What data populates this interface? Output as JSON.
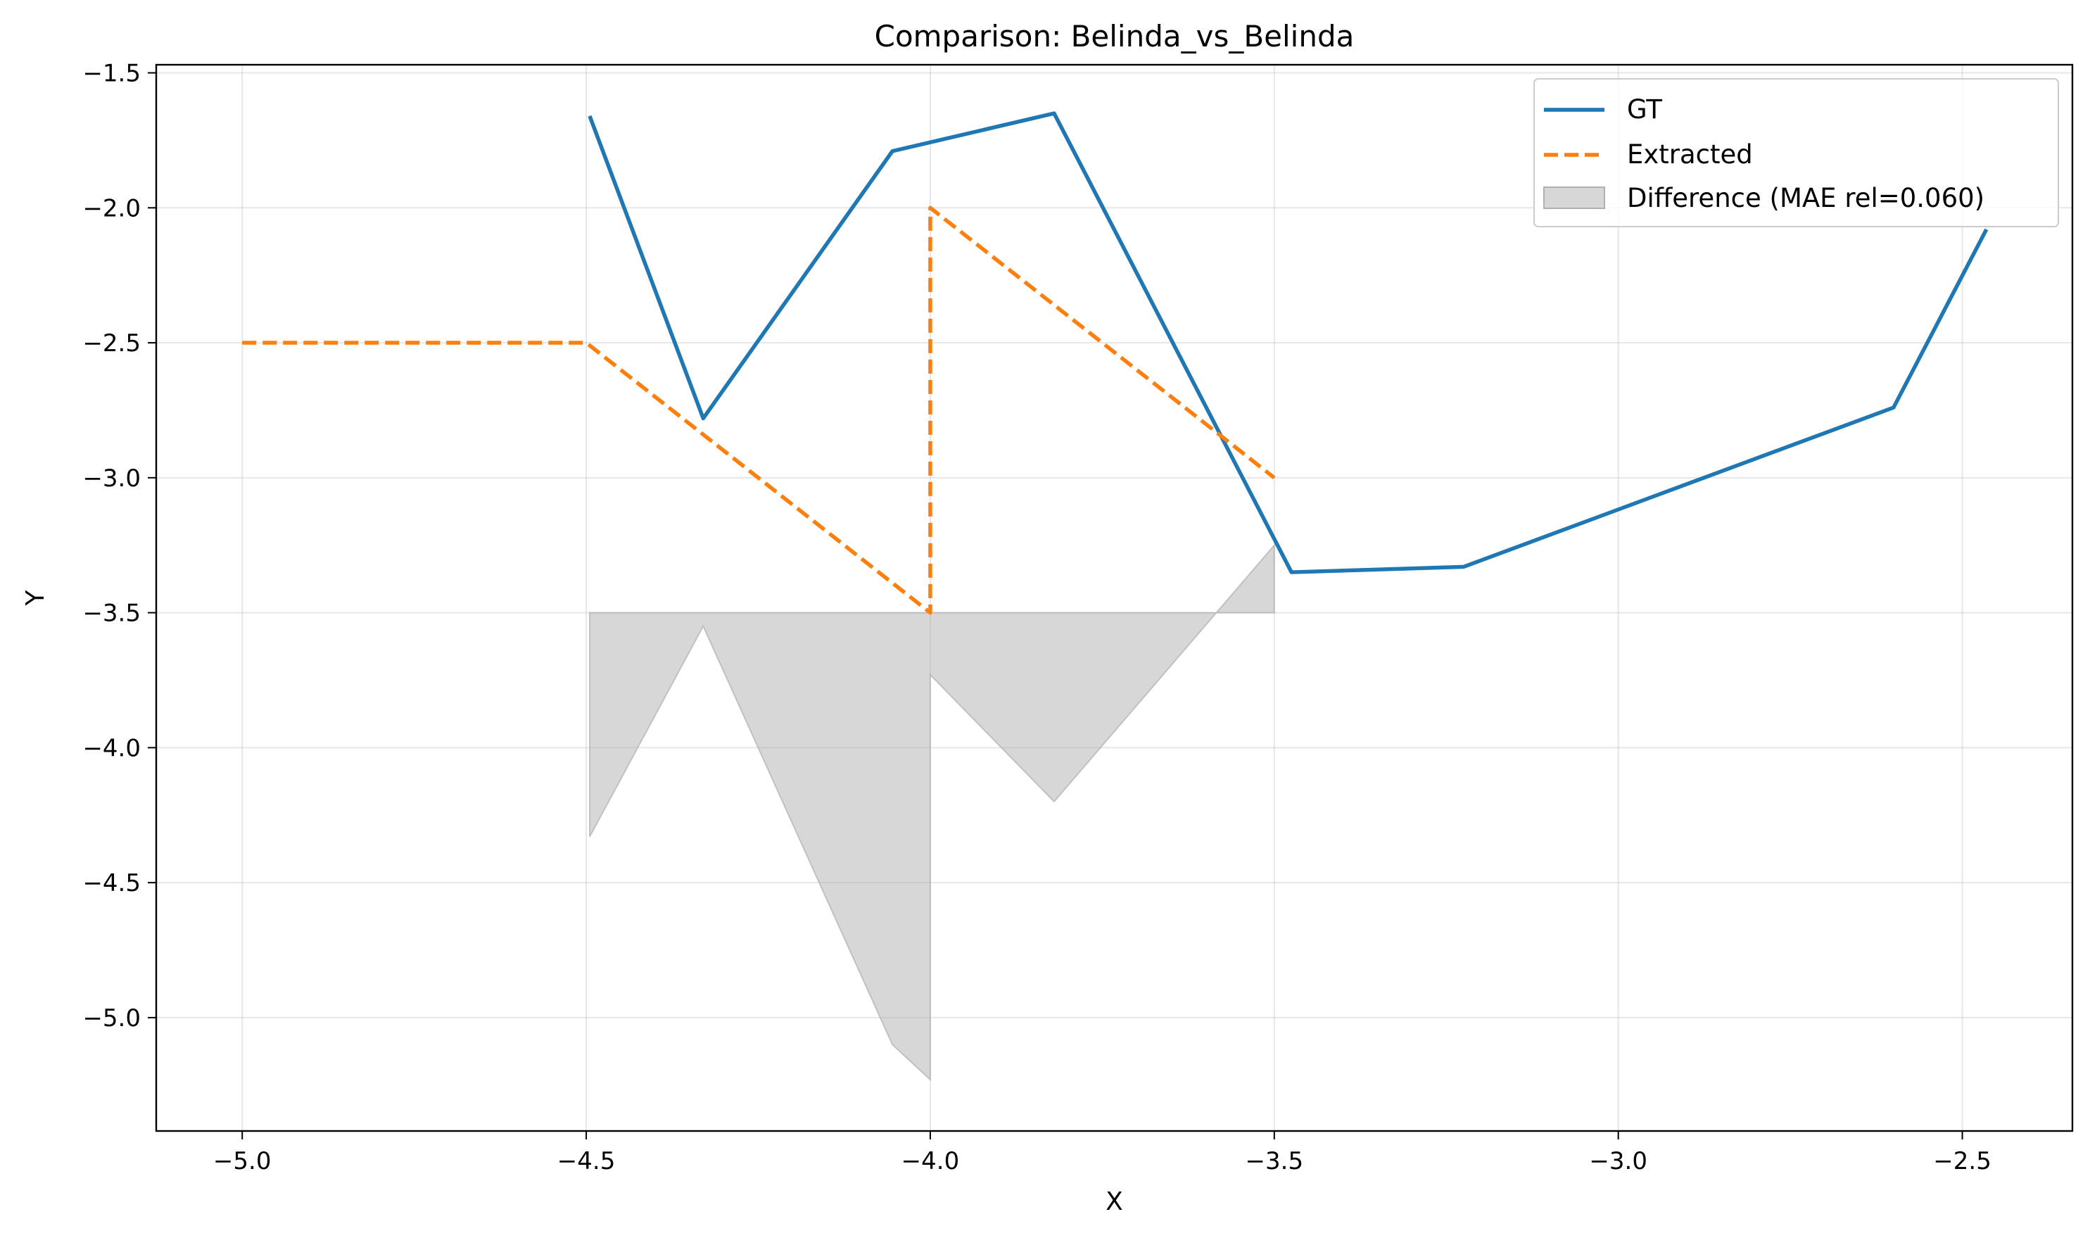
{
  "chart_data": {
    "type": "line",
    "title": "Comparison: Belinda_vs_Belinda",
    "xlabel": "X",
    "ylabel": "Y",
    "xlim": [
      -5.125,
      -2.34
    ],
    "ylim": [
      -5.42,
      -1.47
    ],
    "x_ticks": [
      -5.0,
      -4.5,
      -4.0,
      -3.5,
      -3.0,
      -2.5
    ],
    "x_tick_labels": [
      "−5.0",
      "−4.5",
      "−4.0",
      "−3.5",
      "−3.0",
      "−2.5"
    ],
    "y_ticks": [
      -1.5,
      -2.0,
      -2.5,
      -3.0,
      -3.5,
      -4.0,
      -4.5,
      -5.0
    ],
    "y_tick_labels": [
      "−1.5",
      "−2.0",
      "−2.5",
      "−3.0",
      "−3.5",
      "−4.0",
      "−4.5",
      "−5.0"
    ],
    "grid": true,
    "legend_position": "top-right",
    "series": [
      {
        "name": "GT",
        "color": "#1f77b4",
        "style": "solid",
        "points": [
          [
            -4.495,
            -1.66
          ],
          [
            -4.33,
            -2.78
          ],
          [
            -4.055,
            -1.79
          ],
          [
            -3.82,
            -1.65
          ],
          [
            -3.475,
            -3.35
          ],
          [
            -3.225,
            -3.33
          ],
          [
            -2.6,
            -2.74
          ],
          [
            -2.465,
            -2.08
          ]
        ]
      },
      {
        "name": "Extracted",
        "color": "#ff7f0e",
        "style": "dashed",
        "points": [
          [
            -5.0,
            -2.5
          ],
          [
            -4.5,
            -2.5
          ],
          [
            -4.0,
            -3.5
          ],
          [
            -4.0,
            -2.0
          ],
          [
            -3.5,
            -3.0
          ]
        ]
      }
    ],
    "difference": {
      "name": "Difference (MAE rel=0.060)",
      "color": "#b0b0b0",
      "baseline": -3.5,
      "points": [
        [
          -4.495,
          -4.33
        ],
        [
          -4.33,
          -3.55
        ],
        [
          -4.055,
          -5.1
        ],
        [
          -4.0,
          -5.23
        ],
        [
          -4.0,
          -3.73
        ],
        [
          -3.82,
          -4.2
        ],
        [
          -3.5,
          -3.25
        ]
      ]
    }
  }
}
